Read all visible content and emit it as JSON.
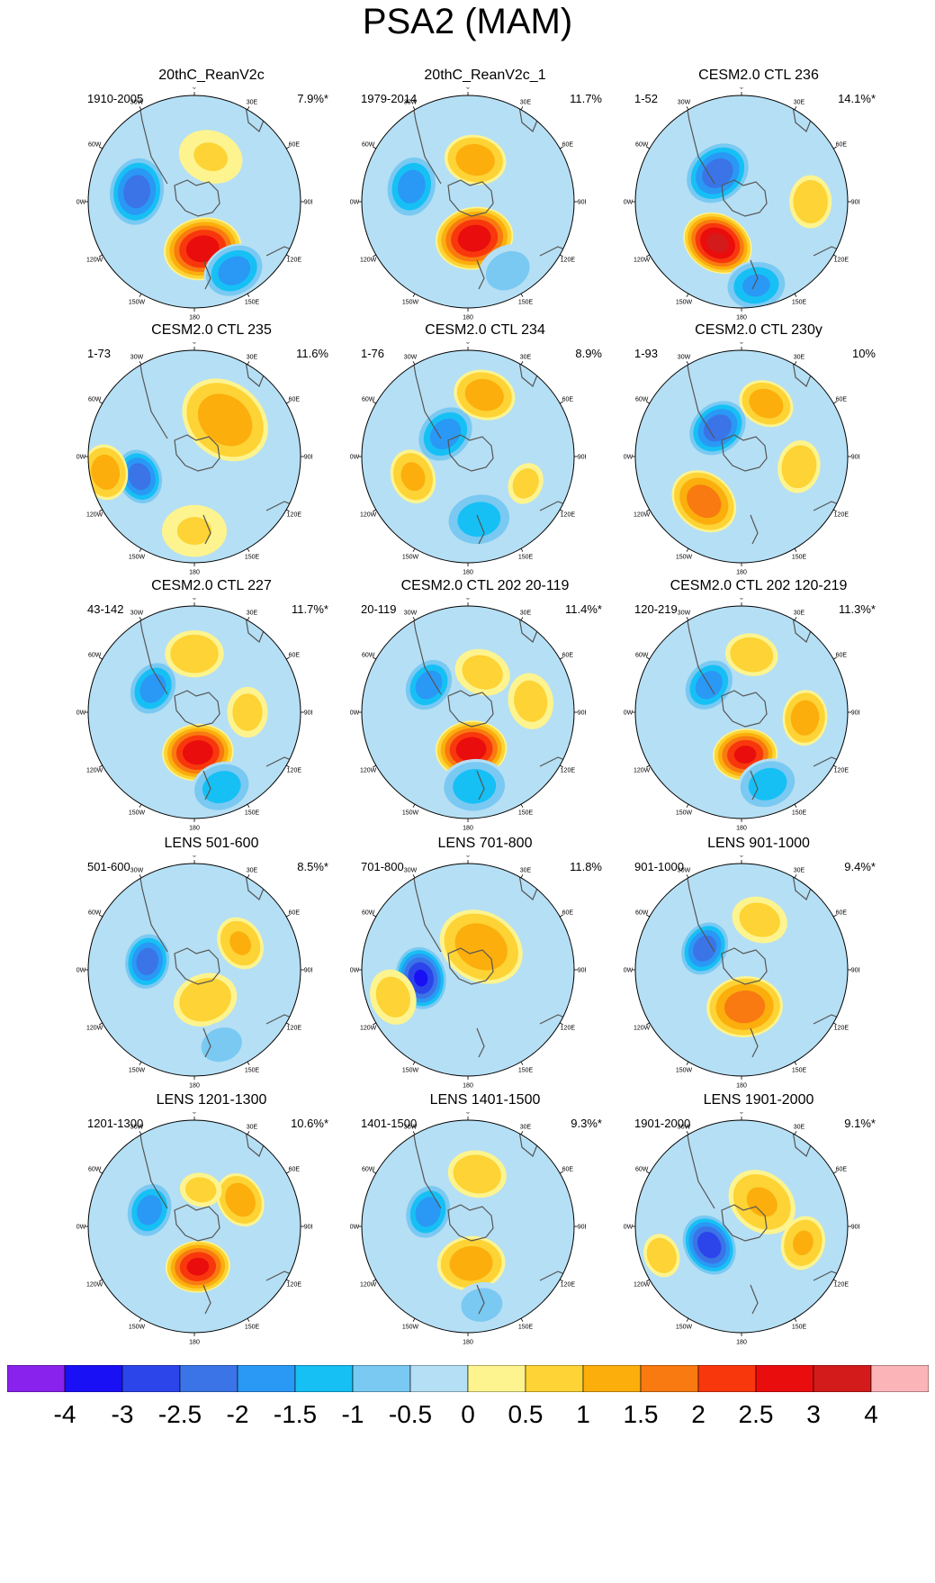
{
  "title": "PSA2 (MAM)",
  "panels": [
    {
      "title": "20thC_ReanV2c",
      "period": "1910-2005",
      "percent": "7.9%*",
      "blobs": [
        {
          "a": -80,
          "r": 0.55,
          "v": -2.5,
          "s": 0.22
        },
        {
          "a": 170,
          "r": 0.45,
          "v": 3.0,
          "s": 0.24
        },
        {
          "a": 150,
          "r": 0.75,
          "v": -2.0,
          "s": 0.2
        },
        {
          "a": 20,
          "r": 0.45,
          "v": 0.6,
          "s": 0.25
        }
      ]
    },
    {
      "title": "20thC_ReanV2c_1",
      "period": "1979-2014",
      "percent": "11.7%",
      "blobs": [
        {
          "a": -75,
          "r": 0.55,
          "v": -2.0,
          "s": 0.2
        },
        {
          "a": 170,
          "r": 0.35,
          "v": 3.0,
          "s": 0.24
        },
        {
          "a": 10,
          "r": 0.4,
          "v": 1.5,
          "s": 0.2
        },
        {
          "a": 150,
          "r": 0.75,
          "v": -0.8,
          "s": 0.22
        }
      ]
    },
    {
      "title": "CESM2.0 CTL 236",
      "period": "1-52",
      "percent": "14.1%*",
      "blobs": [
        {
          "a": -40,
          "r": 0.35,
          "v": -2.5,
          "s": 0.22
        },
        {
          "a": -150,
          "r": 0.45,
          "v": 3.3,
          "s": 0.22
        },
        {
          "a": 170,
          "r": 0.8,
          "v": -1.8,
          "s": 0.2
        },
        {
          "a": 90,
          "r": 0.65,
          "v": 1.0,
          "s": 0.18
        }
      ]
    },
    {
      "title": "CESM2.0 CTL 235",
      "period": "1-73",
      "percent": "11.6%",
      "blobs": [
        {
          "a": -110,
          "r": 0.55,
          "v": -2.5,
          "s": 0.18
        },
        {
          "a": 40,
          "r": 0.45,
          "v": 1.5,
          "s": 0.3
        },
        {
          "a": -100,
          "r": 0.85,
          "v": 1.5,
          "s": 0.18
        },
        {
          "a": 180,
          "r": 0.7,
          "v": 0.6,
          "s": 0.25
        }
      ]
    },
    {
      "title": "CESM2.0 CTL 234",
      "period": "1-76",
      "percent": "8.9%",
      "blobs": [
        {
          "a": -45,
          "r": 0.3,
          "v": -2.0,
          "s": 0.2
        },
        {
          "a": 15,
          "r": 0.6,
          "v": 1.5,
          "s": 0.2
        },
        {
          "a": -110,
          "r": 0.55,
          "v": 1.3,
          "s": 0.18
        },
        {
          "a": 170,
          "r": 0.6,
          "v": -1.5,
          "s": 0.22
        },
        {
          "a": 115,
          "r": 0.6,
          "v": 0.8,
          "s": 0.15
        }
      ]
    },
    {
      "title": "CESM2.0 CTL 230y",
      "period": "1-93",
      "percent": "10%",
      "blobs": [
        {
          "a": -40,
          "r": 0.35,
          "v": -2.5,
          "s": 0.2
        },
        {
          "a": 25,
          "r": 0.55,
          "v": 1.5,
          "s": 0.18
        },
        {
          "a": -140,
          "r": 0.55,
          "v": 2.0,
          "s": 0.22
        },
        {
          "a": 100,
          "r": 0.55,
          "v": 1.0,
          "s": 0.18
        }
      ]
    },
    {
      "title": "CESM2.0 CTL 227",
      "period": "43-142",
      "percent": "11.7%*",
      "blobs": [
        {
          "a": -60,
          "r": 0.45,
          "v": -2.0,
          "s": 0.18
        },
        {
          "a": 175,
          "r": 0.38,
          "v": 3.0,
          "s": 0.22
        },
        {
          "a": 160,
          "r": 0.75,
          "v": -1.5,
          "s": 0.2
        },
        {
          "a": 0,
          "r": 0.55,
          "v": 1.0,
          "s": 0.2
        },
        {
          "a": 90,
          "r": 0.5,
          "v": 0.8,
          "s": 0.18
        }
      ]
    },
    {
      "title": "CESM2.0 CTL 202 20-119",
      "period": "20-119",
      "percent": "11.4%*",
      "blobs": [
        {
          "a": -55,
          "r": 0.45,
          "v": -2.0,
          "s": 0.18
        },
        {
          "a": 175,
          "r": 0.35,
          "v": 3.0,
          "s": 0.22
        },
        {
          "a": 175,
          "r": 0.7,
          "v": -1.5,
          "s": 0.22
        },
        {
          "a": 20,
          "r": 0.4,
          "v": 0.8,
          "s": 0.2
        },
        {
          "a": 80,
          "r": 0.6,
          "v": 0.8,
          "s": 0.2
        }
      ]
    },
    {
      "title": "CESM2.0 CTL 202 120-219",
      "period": "120-219",
      "percent": "11.3%*",
      "blobs": [
        {
          "a": -50,
          "r": 0.4,
          "v": -2.0,
          "s": 0.18
        },
        {
          "a": 175,
          "r": 0.4,
          "v": 2.8,
          "s": 0.2
        },
        {
          "a": 160,
          "r": 0.72,
          "v": -1.5,
          "s": 0.2
        },
        {
          "a": 95,
          "r": 0.6,
          "v": 1.5,
          "s": 0.18
        },
        {
          "a": 10,
          "r": 0.55,
          "v": 1.0,
          "s": 0.18
        }
      ]
    },
    {
      "title": "LENS 501-600",
      "period": "501-600",
      "percent": "8.5%*",
      "blobs": [
        {
          "a": -80,
          "r": 0.45,
          "v": -2.5,
          "s": 0.18
        },
        {
          "a": 160,
          "r": 0.3,
          "v": 1.0,
          "s": 0.22
        },
        {
          "a": 160,
          "r": 0.75,
          "v": -0.8,
          "s": 0.2
        },
        {
          "a": 60,
          "r": 0.5,
          "v": 1.2,
          "s": 0.18
        }
      ]
    },
    {
      "title": "LENS 701-800",
      "period": "701-800",
      "percent": "11.8%",
      "blobs": [
        {
          "a": -100,
          "r": 0.45,
          "v": -3.2,
          "s": 0.2
        },
        {
          "a": 30,
          "r": 0.25,
          "v": 1.5,
          "s": 0.28
        },
        {
          "a": -110,
          "r": 0.75,
          "v": 0.8,
          "s": 0.2
        }
      ]
    },
    {
      "title": "LENS 901-1000",
      "period": "901-1000",
      "percent": "9.4%*",
      "blobs": [
        {
          "a": -60,
          "r": 0.4,
          "v": -2.5,
          "s": 0.18
        },
        {
          "a": 175,
          "r": 0.35,
          "v": 2.0,
          "s": 0.24
        },
        {
          "a": 20,
          "r": 0.5,
          "v": 0.8,
          "s": 0.2
        }
      ]
    },
    {
      "title": "LENS 1201-1300",
      "period": "1201-1300",
      "percent": "10.6%*",
      "blobs": [
        {
          "a": -70,
          "r": 0.45,
          "v": -2.0,
          "s": 0.18
        },
        {
          "a": 175,
          "r": 0.38,
          "v": 2.8,
          "s": 0.2
        },
        {
          "a": 60,
          "r": 0.5,
          "v": 1.5,
          "s": 0.18
        },
        {
          "a": 10,
          "r": 0.35,
          "v": 0.8,
          "s": 0.15
        }
      ]
    },
    {
      "title": "LENS 1401-1500",
      "period": "1401-1500",
      "percent": "9.3%*",
      "blobs": [
        {
          "a": -70,
          "r": 0.4,
          "v": -2.0,
          "s": 0.18
        },
        {
          "a": 175,
          "r": 0.35,
          "v": 1.5,
          "s": 0.22
        },
        {
          "a": 10,
          "r": 0.5,
          "v": 1.0,
          "s": 0.2
        },
        {
          "a": 170,
          "r": 0.75,
          "v": -0.8,
          "s": 0.2
        }
      ]
    },
    {
      "title": "LENS 1901-2000",
      "period": "1901-2000",
      "percent": "9.1%*",
      "blobs": [
        {
          "a": -120,
          "r": 0.35,
          "v": -3.0,
          "s": 0.2
        },
        {
          "a": 40,
          "r": 0.3,
          "v": 1.2,
          "s": 0.24
        },
        {
          "a": -110,
          "r": 0.8,
          "v": 1.0,
          "s": 0.15
        },
        {
          "a": 105,
          "r": 0.6,
          "v": 1.2,
          "s": 0.18
        }
      ]
    }
  ],
  "lon_labels": [
    "0",
    "30E",
    "60E",
    "90E",
    "120E",
    "150E",
    "180",
    "150W",
    "120W",
    "90W",
    "60W",
    "30W"
  ],
  "colorbar": {
    "colors": [
      "#8a22ee",
      "#1a10f5",
      "#2b45eb",
      "#3a74e6",
      "#2a98f5",
      "#16c0f5",
      "#79c9f2",
      "#b5dff4",
      "#fdf48f",
      "#fdd335",
      "#fbae0c",
      "#f97a10",
      "#f9370d",
      "#ea0d0d",
      "#d41b1b",
      "#fbb5b8"
    ],
    "labels": [
      "-4",
      "-3",
      "-2.5",
      "-2",
      "-1.5",
      "-1",
      "-0.5",
      "0",
      "0.5",
      "1",
      "1.5",
      "2",
      "2.5",
      "3",
      "4"
    ]
  }
}
